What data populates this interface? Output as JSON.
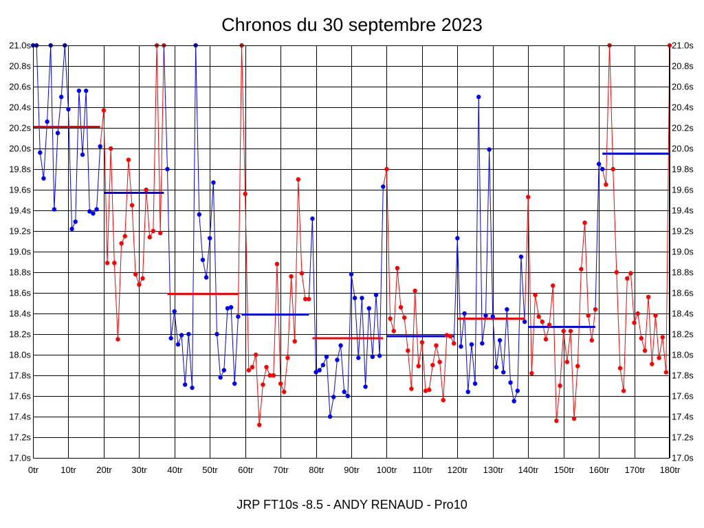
{
  "chart_data": {
    "type": "line",
    "title": "Chronos du 30 septembre 2023",
    "footer": "JRP FT10s -8.5 - ANDY RENAUD - Pro10",
    "xlabel": "",
    "ylabel": "",
    "xlim": [
      0,
      180
    ],
    "ylim": [
      17.0,
      21.0
    ],
    "grid": true,
    "legend": "none",
    "x_ticks": [
      "0tr",
      "10tr",
      "20tr",
      "30tr",
      "40tr",
      "50tr",
      "60tr",
      "70tr",
      "80tr",
      "90tr",
      "100tr",
      "110tr",
      "120tr",
      "130tr",
      "140tr",
      "150tr",
      "160tr",
      "170tr",
      "180tr"
    ],
    "y_ticks": [
      "17.0s",
      "17.2s",
      "17.4s",
      "17.6s",
      "17.8s",
      "18.0s",
      "18.2s",
      "18.4s",
      "18.6s",
      "18.8s",
      "19.0s",
      "19.2s",
      "19.4s",
      "19.6s",
      "19.8s",
      "20.0s",
      "20.2s",
      "20.4s",
      "20.6s",
      "20.8s",
      "21.0s"
    ],
    "colors": {
      "blue": "#0000ff",
      "red": "#ff0000"
    },
    "segments": [
      {
        "color": "blue",
        "start": 0,
        "mean": 20.21,
        "values": [
          21.0,
          21.0,
          19.96,
          19.71,
          20.26,
          21.0,
          19.41,
          20.15,
          20.5,
          21.0,
          20.38,
          19.22,
          19.29,
          20.56,
          19.94,
          20.56,
          19.39,
          19.37,
          19.41,
          20.02
        ]
      },
      {
        "color": "red",
        "start": 20,
        "mean": 19.57,
        "values": [
          20.37,
          18.89,
          20.0,
          18.89,
          18.15,
          19.08,
          19.15,
          19.89,
          19.45,
          18.78,
          18.68,
          18.74,
          19.6,
          19.14,
          19.2,
          21.0,
          19.18,
          21.0
        ]
      },
      {
        "color": "blue",
        "start": 38,
        "mean": 18.59,
        "values": [
          19.8,
          18.16,
          18.42,
          18.1,
          18.19,
          17.71,
          18.2,
          17.68,
          21.0,
          19.36,
          18.92,
          18.75,
          19.13,
          19.67,
          18.2,
          17.78,
          17.85,
          18.45,
          18.46,
          17.72,
          18.37
        ]
      },
      {
        "color": "red",
        "start": 59,
        "mean": 18.39,
        "values": [
          21.0,
          19.56,
          17.85,
          17.88,
          18.0,
          17.32,
          17.71,
          17.88,
          17.8,
          17.8,
          18.88,
          17.72,
          17.64,
          17.97,
          18.76,
          18.13,
          19.7,
          18.79,
          18.54,
          18.54
        ]
      },
      {
        "color": "blue",
        "start": 79,
        "mean": 18.16,
        "values": [
          19.32,
          17.83,
          17.85,
          17.9,
          17.98,
          17.4,
          17.59,
          17.95,
          18.09,
          17.64,
          17.6,
          18.78,
          18.55,
          17.97,
          18.55,
          17.69,
          18.45,
          17.98,
          18.58,
          17.99,
          19.63
        ]
      },
      {
        "color": "red",
        "start": 100,
        "mean": 18.18,
        "values": [
          19.8,
          18.35,
          18.23,
          18.84,
          18.46,
          18.36,
          18.04,
          17.67,
          18.62,
          17.89,
          18.12,
          17.65,
          17.66,
          17.9,
          18.09,
          17.93,
          17.56,
          18.19,
          18.18,
          18.11
        ]
      },
      {
        "color": "blue",
        "start": 120,
        "mean": 18.35,
        "values": [
          19.13,
          18.08,
          18.4,
          17.64,
          18.1,
          17.72,
          20.5,
          18.11,
          18.38,
          19.99,
          18.37,
          17.88,
          18.14,
          17.83,
          18.44,
          17.73,
          17.55,
          17.65,
          18.95,
          18.32
        ]
      },
      {
        "color": "red",
        "start": 140,
        "mean": 18.27,
        "values": [
          19.53,
          17.82,
          18.58,
          18.37,
          18.32,
          18.15,
          18.29,
          18.67,
          17.36,
          17.7,
          18.23,
          17.93,
          18.23,
          17.38,
          17.89,
          18.83,
          19.28,
          18.38,
          18.14,
          18.44
        ]
      },
      {
        "color": "blue",
        "start": 160,
        "mean": 19.95,
        "values": [
          19.85,
          19.8
        ]
      },
      {
        "color": "red",
        "start": 162,
        "mean": null,
        "values": [
          19.65,
          21.0,
          19.8,
          18.8,
          17.87,
          17.65,
          18.74,
          18.79,
          18.31,
          18.4,
          18.16,
          18.04,
          18.56,
          17.91,
          18.38,
          17.97,
          18.17,
          17.83,
          21.0
        ]
      }
    ],
    "mean_lines": [
      {
        "color": "red",
        "x_start": 0,
        "x_end": 19,
        "value": 20.21
      },
      {
        "color": "blue",
        "x_start": 20,
        "x_end": 37,
        "value": 19.57
      },
      {
        "color": "red",
        "x_start": 38,
        "x_end": 58,
        "value": 18.59
      },
      {
        "color": "blue",
        "x_start": 59,
        "x_end": 78,
        "value": 18.39
      },
      {
        "color": "red",
        "x_start": 79,
        "x_end": 99,
        "value": 18.16
      },
      {
        "color": "blue",
        "x_start": 100,
        "x_end": 119,
        "value": 18.18
      },
      {
        "color": "red",
        "x_start": 120,
        "x_end": 139,
        "value": 18.35
      },
      {
        "color": "blue",
        "x_start": 140,
        "x_end": 159,
        "value": 18.27
      },
      {
        "color": "blue",
        "x_start": 161,
        "x_end": 180,
        "value": 19.95
      }
    ]
  }
}
